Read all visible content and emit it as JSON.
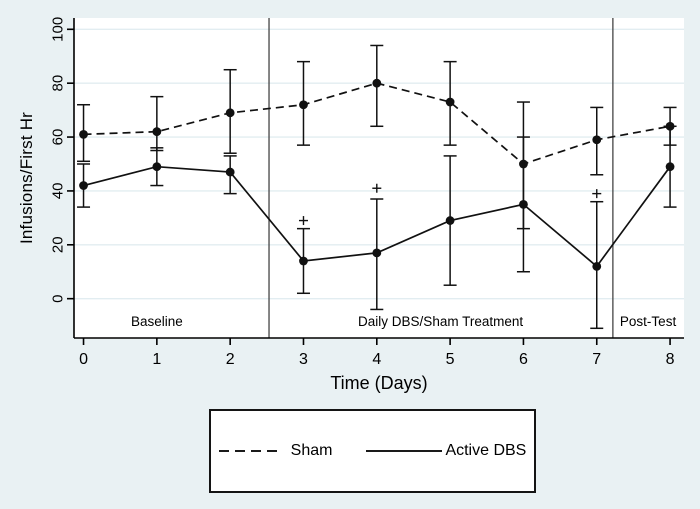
{
  "chart_data": {
    "type": "line",
    "title": "",
    "xlabel": "Time (Days)",
    "ylabel": "Infusions/First Hr",
    "x": [
      0,
      1,
      2,
      3,
      4,
      5,
      6,
      7,
      8
    ],
    "xticks": [
      "0",
      "1",
      "2",
      "3",
      "4",
      "5",
      "6",
      "7",
      "8"
    ],
    "yticks": [
      0,
      20,
      40,
      60,
      80,
      100
    ],
    "xlim": [
      -0.13,
      8.19
    ],
    "ylim": [
      -14.6,
      104.2
    ],
    "grid": "horizontal",
    "legend_position": "bottom-boxed",
    "series": [
      {
        "name": "Sham",
        "style": "dashed",
        "marker": "circle",
        "values": [
          61,
          62,
          69,
          72,
          80,
          73,
          50,
          59,
          64
        ],
        "err_low": [
          51,
          55,
          54,
          57,
          64,
          57,
          26,
          46,
          57
        ],
        "err_high": [
          72,
          75,
          85,
          88,
          94,
          88,
          73,
          71,
          71
        ]
      },
      {
        "name": "Active DBS",
        "style": "solid",
        "marker": "circle",
        "values": [
          42,
          49,
          47,
          14,
          17,
          29,
          35,
          12,
          49
        ],
        "err_low": [
          34,
          42,
          39,
          2,
          -4,
          5,
          10,
          -11,
          34
        ],
        "err_high": [
          50,
          56,
          53,
          26,
          37,
          53,
          60,
          36,
          64
        ]
      }
    ],
    "plus_markers": [
      {
        "x": 3,
        "y": 29
      },
      {
        "x": 4,
        "y": 41
      },
      {
        "x": 7,
        "y": 39
      }
    ],
    "separators": [
      2.53,
      7.22
    ],
    "phases": [
      {
        "label": "Baseline",
        "x": 1.0
      },
      {
        "label": "Daily DBS/Sham Treatment",
        "x": 4.87
      },
      {
        "label": "Post-Test",
        "x": 7.7
      }
    ],
    "colors": {
      "background": "#e9f1f3",
      "plot_bg": "#ffffff",
      "grid": "#e2edf1",
      "axis": "#000000",
      "data": "#111111",
      "separator": "#454545"
    }
  }
}
